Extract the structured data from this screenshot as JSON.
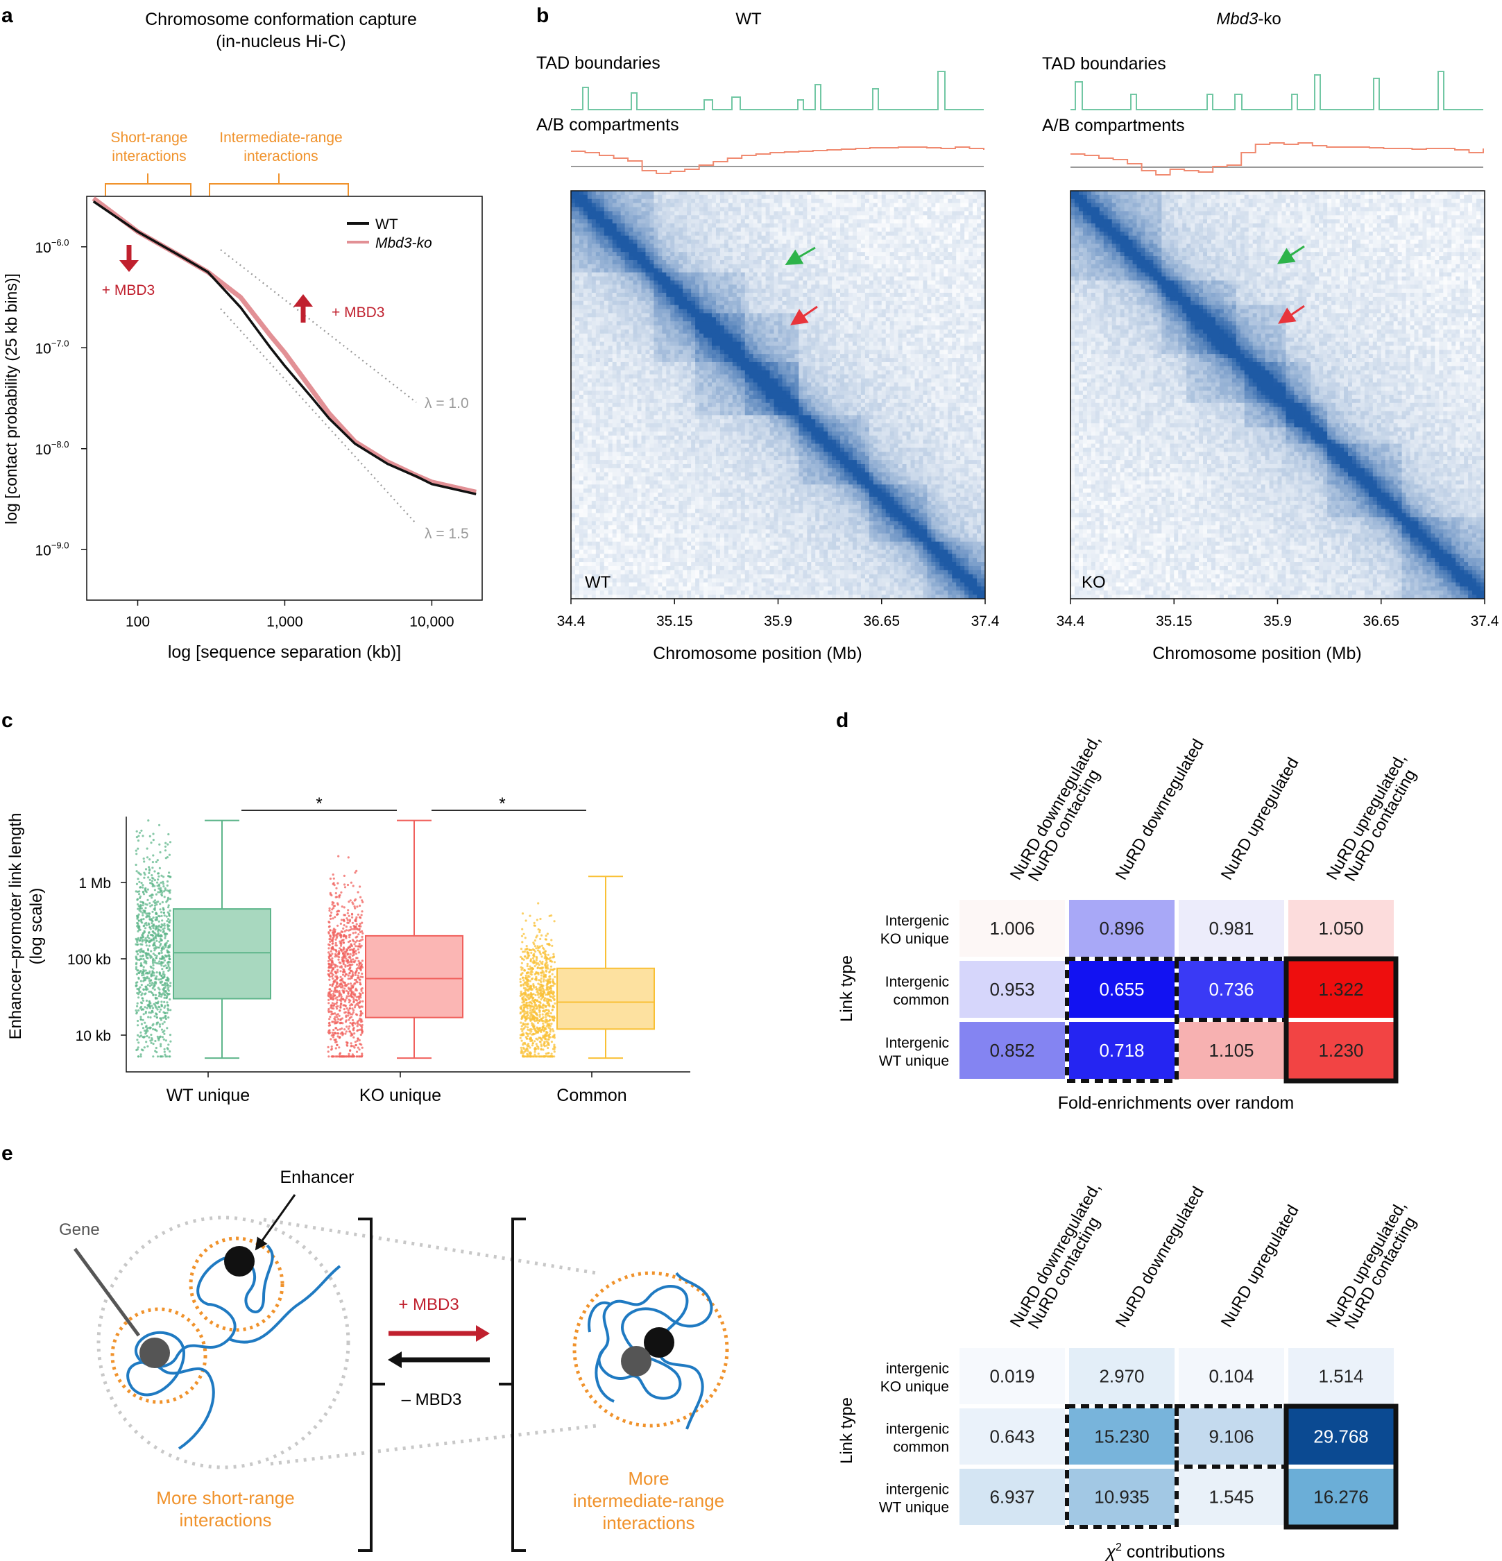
{
  "panel_letters": {
    "a": "a",
    "b": "b",
    "c": "c",
    "d": "d",
    "e": "e"
  },
  "colors": {
    "black": "#111111",
    "ko_pink": "#e29095",
    "orange": "#f0922b",
    "red_arrow": "#c0202e",
    "gray": "#9a9a9a",
    "teal": "#72c7a4",
    "salmon": "#f08a70",
    "green_pts": "#5db58a",
    "red_pts": "#f0605c",
    "yellow_pts": "#f9c035",
    "heat_blue": "#1f5fa8"
  },
  "panel_a": {
    "title_line1": "Chromosome conformation capture",
    "title_line2": "(in-nucleus Hi-C)",
    "short_range_line1": "Short-range",
    "short_range_line2": "interactions",
    "inter_range_line1": "Intermediate-range",
    "inter_range_line2": "interactions",
    "ylabel": "log [contact probability (25 kb bins)]",
    "xlabel": "log [sequence separation (kb)]",
    "legend_wt": "WT",
    "legend_ko": "Mbd3-ko",
    "mbd3_left": "+ MBD3",
    "mbd3_right": "+ MBD3",
    "lambda1": "λ = 1.0",
    "lambda15": "λ = 1.5",
    "yticks": [
      "10",
      "10",
      "10",
      "10"
    ],
    "ytick_exps": [
      "−6.0",
      "−7.0",
      "−8.0",
      "−9.0"
    ],
    "xticks": [
      "100",
      "1,000",
      "10,000"
    ]
  },
  "chart_data": [
    {
      "type": "line",
      "title": "Chromosome conformation capture (in-nucleus Hi-C)",
      "xlabel": "log [sequence separation (kb)]",
      "ylabel": "log [contact probability (25 kb bins)]",
      "xscale": "log",
      "xlim": [
        45,
        22000
      ],
      "ylim": [
        -9.5,
        -5.5
      ],
      "series": [
        {
          "name": "WT",
          "x": [
            50,
            100,
            200,
            300,
            500,
            800,
            1000,
            1500,
            2000,
            3000,
            5000,
            8000,
            10000,
            20000
          ],
          "y": [
            -5.55,
            -5.85,
            -6.1,
            -6.25,
            -6.6,
            -7.0,
            -7.18,
            -7.48,
            -7.7,
            -7.95,
            -8.15,
            -8.28,
            -8.35,
            -8.45
          ]
        },
        {
          "name": "Mbd3-ko",
          "x": [
            50,
            100,
            200,
            300,
            500,
            800,
            1000,
            1500,
            2000,
            3000,
            5000,
            8000,
            10000,
            20000
          ],
          "y": [
            -5.52,
            -5.85,
            -6.1,
            -6.25,
            -6.5,
            -6.88,
            -7.05,
            -7.4,
            -7.65,
            -7.93,
            -8.13,
            -8.27,
            -8.33,
            -8.43
          ]
        }
      ],
      "reference_lines": [
        {
          "name": "λ = 1.0",
          "slope": -1.0
        },
        {
          "name": "λ = 1.5",
          "slope": -1.5
        }
      ]
    },
    {
      "type": "box",
      "ylabel": "Enhancer–promoter link length (log scale)",
      "yticks": [
        "10 kb",
        "100 kb",
        "1 Mb"
      ],
      "categories": [
        "WT unique",
        "KO unique",
        "Common"
      ],
      "boxes": [
        {
          "name": "WT unique",
          "whisker_low_kb": 5,
          "q1_kb": 30,
          "median_kb": 120,
          "q3_kb": 450,
          "whisker_high_kb": 6500
        },
        {
          "name": "KO unique",
          "whisker_low_kb": 5,
          "q1_kb": 17,
          "median_kb": 55,
          "q3_kb": 200,
          "whisker_high_kb": 6500
        },
        {
          "name": "Common",
          "whisker_low_kb": 5,
          "q1_kb": 12,
          "median_kb": 27,
          "q3_kb": 75,
          "whisker_high_kb": 1200
        }
      ],
      "significance": [
        "*",
        "*"
      ]
    },
    {
      "type": "heatmap",
      "title": "Fold-enrichments over random",
      "columns": [
        "NuRD downregulated, NuRD contacting",
        "NuRD downregulated",
        "NuRD upregulated",
        "NuRD upregulated, NuRD contacting"
      ],
      "rows": [
        "Intergenic KO unique",
        "Intergenic common",
        "Intergenic WT unique"
      ],
      "values": [
        [
          1.006,
          0.896,
          0.981,
          1.05
        ],
        [
          0.953,
          0.655,
          0.736,
          1.322
        ],
        [
          0.852,
          0.718,
          1.105,
          1.23
        ]
      ]
    },
    {
      "type": "heatmap",
      "title": "χ2 contributions",
      "columns": [
        "NuRD downregulated, NuRD contacting",
        "NuRD downregulated",
        "NuRD upregulated",
        "NuRD upregulated, NuRD contacting"
      ],
      "rows": [
        "intergenic KO unique",
        "intergenic common",
        "intergenic WT unique"
      ],
      "values": [
        [
          0.019,
          2.97,
          0.104,
          1.514
        ],
        [
          0.643,
          15.23,
          9.106,
          29.768
        ],
        [
          6.937,
          10.935,
          1.545,
          16.276
        ]
      ]
    }
  ],
  "panel_b": {
    "wt_title": "WT",
    "ko_title": "Mbd3",
    "ko_title_suffix": "-ko",
    "tad_label": "TAD boundaries",
    "ab_label": "A/B compartments",
    "wt_corner": "WT",
    "ko_corner": "KO",
    "xticks": [
      "34.4",
      "35.15",
      "35.9",
      "36.65",
      "37.4"
    ],
    "xlabel": "Chromosome position (Mb)"
  },
  "panel_c": {
    "ylabel_line1": "Enhancer–promoter link length",
    "ylabel_line2": "(log scale)",
    "yticks": [
      "1 Mb",
      "100 kb",
      "10 kb"
    ],
    "categories": [
      "WT unique",
      "KO unique",
      "Common"
    ],
    "stars": [
      "*",
      "*"
    ]
  },
  "panel_d": {
    "columns": [
      {
        "line1": "NuRD downregulated,",
        "line2": "NuRD contacting"
      },
      {
        "line1": "NuRD downregulated",
        "line2": ""
      },
      {
        "line1": "NuRD upregulated",
        "line2": ""
      },
      {
        "line1": "NuRD upregulated,",
        "line2": "NuRD contacting"
      }
    ],
    "link_type": "Link type",
    "fold": {
      "rows": [
        {
          "line1": "Intergenic",
          "line2": "KO unique"
        },
        {
          "line1": "Intergenic",
          "line2": "common"
        },
        {
          "line1": "Intergenic",
          "line2": "WT unique"
        }
      ],
      "cells": [
        [
          "1.006",
          "0.896",
          "0.981",
          "1.050"
        ],
        [
          "0.953",
          "0.655",
          "0.736",
          "1.322"
        ],
        [
          "0.852",
          "0.718",
          "1.105",
          "1.230"
        ]
      ],
      "fills": [
        [
          "#fdf7f6",
          "#a8a8f7",
          "#ececfb",
          "#fcdcdc"
        ],
        [
          "#d6d6fb",
          "#1212f2",
          "#3a3af5",
          "#ee0e0e"
        ],
        [
          "#8484f2",
          "#2525f2",
          "#f7b1b1",
          "#f24444"
        ]
      ],
      "text_colors": [
        [
          "#222",
          "#222",
          "#222",
          "#222"
        ],
        [
          "#222",
          "#fff",
          "#fff",
          "#222"
        ],
        [
          "#222",
          "#fff",
          "#222",
          "#222"
        ]
      ],
      "caption": "Fold-enrichments over random"
    },
    "chi": {
      "rows": [
        {
          "line1": "intergenic",
          "line2": "KO unique"
        },
        {
          "line1": "intergenic",
          "line2": "common"
        },
        {
          "line1": "intergenic",
          "line2": "WT unique"
        }
      ],
      "cells": [
        [
          "0.019",
          "2.970",
          "0.104",
          "1.514"
        ],
        [
          "0.643",
          "15.230",
          "9.106",
          "29.768"
        ],
        [
          "6.937",
          "10.935",
          "1.545",
          "16.276"
        ]
      ],
      "fills": [
        [
          "#f6f9fd",
          "#e3eef8",
          "#f3f7fc",
          "#ebf2fa"
        ],
        [
          "#eaf2fa",
          "#78b4db",
          "#c4daee",
          "#0b4a92"
        ],
        [
          "#d4e5f3",
          "#a2c8e4",
          "#e9f1f9",
          "#6baed7"
        ]
      ],
      "text_colors": [
        [
          "#222",
          "#222",
          "#222",
          "#222"
        ],
        [
          "#222",
          "#222",
          "#222",
          "#fff"
        ],
        [
          "#222",
          "#222",
          "#222",
          "#222"
        ]
      ],
      "caption_chi": "χ",
      "caption_sup": "2",
      "caption_rest": " contributions"
    }
  },
  "panel_e": {
    "gene": "Gene",
    "enhancer": "Enhancer",
    "plus": "+ MBD3",
    "minus": "– MBD3",
    "left_l1": "More short-range",
    "left_l2": "interactions",
    "right_l1": "More",
    "right_l2": "intermediate-range",
    "right_l3": "interactions"
  }
}
